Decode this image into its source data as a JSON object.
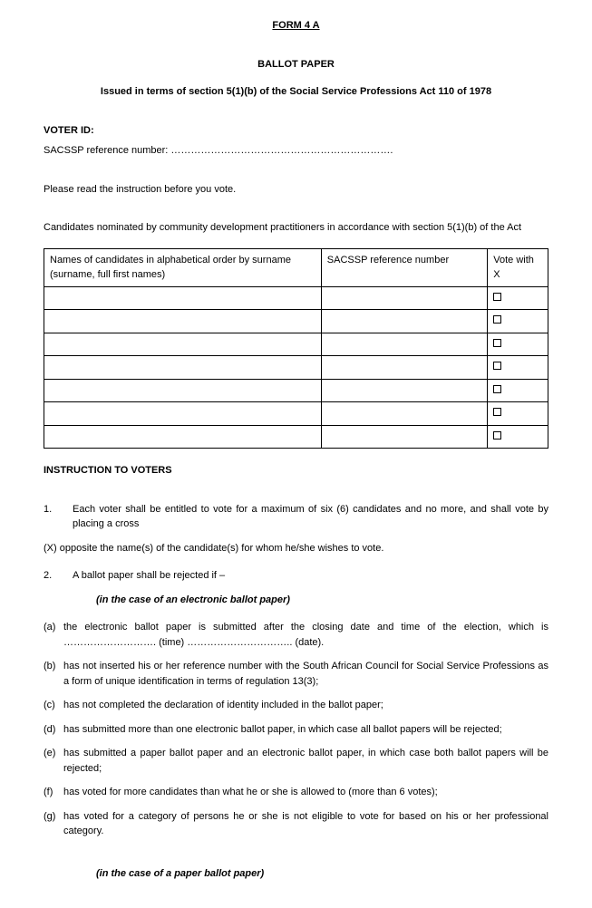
{
  "form_number": "FORM 4 A",
  "title": "BALLOT PAPER",
  "subtitle": "Issued in terms of section 5(1)(b) of the Social Service Professions Act 110 of 1978",
  "voter_id_label": "VOTER ID:",
  "ref_label": "SACSSP reference number: ………………………………………………………….",
  "pre_instruction": "Please read the instruction before you vote.",
  "candidates_intro": "Candidates nominated by community development practitioners in accordance with section 5(1)(b) of the Act",
  "table": {
    "col_name": "Names of candidates in alphabetical order by surname (surname, full first names)",
    "col_ref": "SACSSP reference number",
    "col_vote": "Vote with X",
    "row_count": 7
  },
  "instructions_heading": "INSTRUCTION TO VOTERS",
  "instr": {
    "n1": "1.",
    "t1a": "Each voter shall be entitled to vote for a maximum of six (6) candidates and no more, and shall vote by placing a cross",
    "t1b": "(X) opposite the name(s) of the candidate(s) for whom he/she wishes to vote.",
    "n2": "2.",
    "t2": "A ballot paper shall be rejected if –",
    "case_elec": "(in the case of an electronic ballot paper)",
    "a_lbl": "(a)",
    "a_txt": "the electronic ballot paper is submitted after the closing date and time of the election, which is ………………………. (time) ………………………….. (date).",
    "b_lbl": "(b)",
    "b_txt": "has not inserted his or her reference number with the South African Council for Social Service Professions as a form of unique identification in terms of regulation 13(3);",
    "c_lbl": "(c)",
    "c_txt": "has not completed the declaration of identity included in the ballot paper;",
    "d_lbl": "(d)",
    "d_txt": "has submitted more than one electronic ballot paper, in which case all ballot papers will be rejected;",
    "e_lbl": "(e)",
    "e_txt": "has submitted a paper ballot paper and an electronic ballot paper, in which case both ballot papers will be rejected;",
    "f_lbl": "(f)",
    "f_txt": "has voted for more candidates than what he or she is allowed to (more than 6 votes);",
    "g_lbl": "(g)",
    "g_txt": "has voted for a category of persons he or she is not eligible to vote for based on his or her professional category.",
    "case_paper": "(in the case of a paper ballot paper)"
  }
}
